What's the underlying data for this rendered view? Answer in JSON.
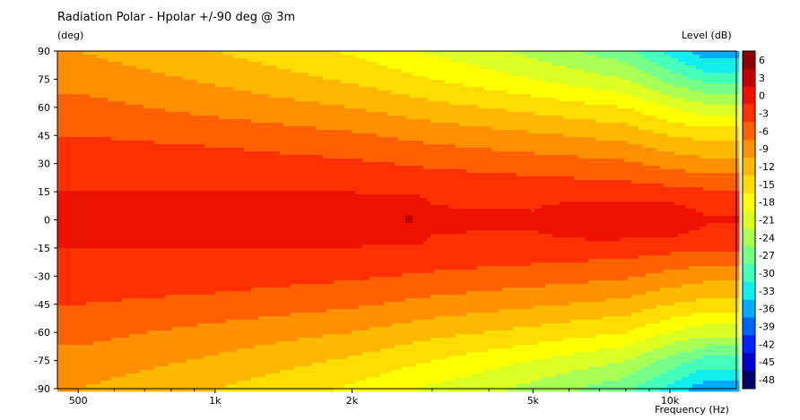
{
  "chart_data": {
    "type": "heatmap",
    "title": "Radiation Polar - Hpolar +/-90 deg @ 3m",
    "ylabel": "(deg)",
    "colorbar_label": "Level (dB)",
    "xlabel": "Frequency (Hz)",
    "x_scale": "log",
    "xlim": [
      450,
      14000
    ],
    "ylim": [
      -90,
      90
    ],
    "x_ticks": [
      500,
      1000,
      2000,
      5000,
      10000
    ],
    "x_tick_labels": [
      "500",
      "1k",
      "2k",
      "5k",
      "10k"
    ],
    "y_ticks": [
      90,
      75,
      60,
      45,
      30,
      15,
      0,
      -15,
      -30,
      -45,
      -60,
      -75,
      -90
    ],
    "y_tick_labels": [
      "90",
      "75",
      "60",
      "45",
      "30",
      "15",
      "0",
      "-15",
      "-30",
      "-45",
      "-60",
      "-75",
      "-90"
    ],
    "level_range": [
      -48,
      6
    ],
    "level_step": 3,
    "colorbar_ticks": [
      6,
      3,
      0,
      -3,
      -6,
      -9,
      -12,
      -15,
      -18,
      -21,
      -24,
      -27,
      -30,
      -33,
      -36,
      -39,
      -42,
      -45,
      -48
    ],
    "colorbar_colors": [
      "#8B0000",
      "#C00000",
      "#EE1100",
      "#FF3000",
      "#FF6000",
      "#FF9000",
      "#FFB800",
      "#FFDD00",
      "#FFFF00",
      "#DDFF22",
      "#AAFF55",
      "#77FF88",
      "#44FFBB",
      "#11EEEE",
      "#00AAFF",
      "#0066FF",
      "#0022FF",
      "#0000CC",
      "#000066"
    ],
    "contour_rows": [
      {
        "angle": 0,
        "frequencies": [
          500,
          1000,
          2000,
          2700,
          3000,
          5000,
          6800,
          10000,
          12000
        ],
        "levels": [
          0.5,
          0.5,
          0.5,
          3.5,
          0.5,
          0.5,
          3.2,
          3.2,
          0.5
        ]
      },
      {
        "angle": 15,
        "frequencies": [
          500,
          1000,
          2000,
          3000,
          5000,
          8000,
          10000,
          12000
        ],
        "levels": [
          0,
          0,
          0,
          -0.5,
          -1,
          -1.5,
          -2,
          -2.5
        ]
      },
      {
        "angle": 30,
        "frequencies": [
          500,
          1000,
          2000,
          3000,
          5000,
          8000,
          10000,
          12000
        ],
        "levels": [
          -1,
          -1.5,
          -2.5,
          -3.5,
          -4.5,
          -5.5,
          -7,
          -8
        ]
      },
      {
        "angle": 45,
        "frequencies": [
          500,
          1000,
          2000,
          3000,
          5000,
          8000,
          10000,
          12000
        ],
        "levels": [
          -3,
          -4,
          -5.5,
          -7,
          -8.5,
          -10,
          -12,
          -13
        ]
      },
      {
        "angle": 60,
        "frequencies": [
          500,
          1000,
          2000,
          3000,
          5000,
          8000,
          10000,
          12000
        ],
        "levels": [
          -5,
          -7,
          -9,
          -11,
          -13,
          -15,
          -18,
          -20
        ]
      },
      {
        "angle": 75,
        "frequencies": [
          500,
          1000,
          2000,
          3000,
          5000,
          8000,
          10000,
          12000
        ],
        "levels": [
          -7,
          -9.5,
          -12.5,
          -15,
          -18,
          -21,
          -25,
          -28
        ]
      },
      {
        "angle": 90,
        "frequencies": [
          500,
          1000,
          2000,
          3000,
          5000,
          8000,
          10000,
          12000
        ],
        "levels": [
          -9,
          -12,
          -15.5,
          -18.5,
          -22,
          -26,
          -31,
          -35
        ]
      }
    ]
  }
}
